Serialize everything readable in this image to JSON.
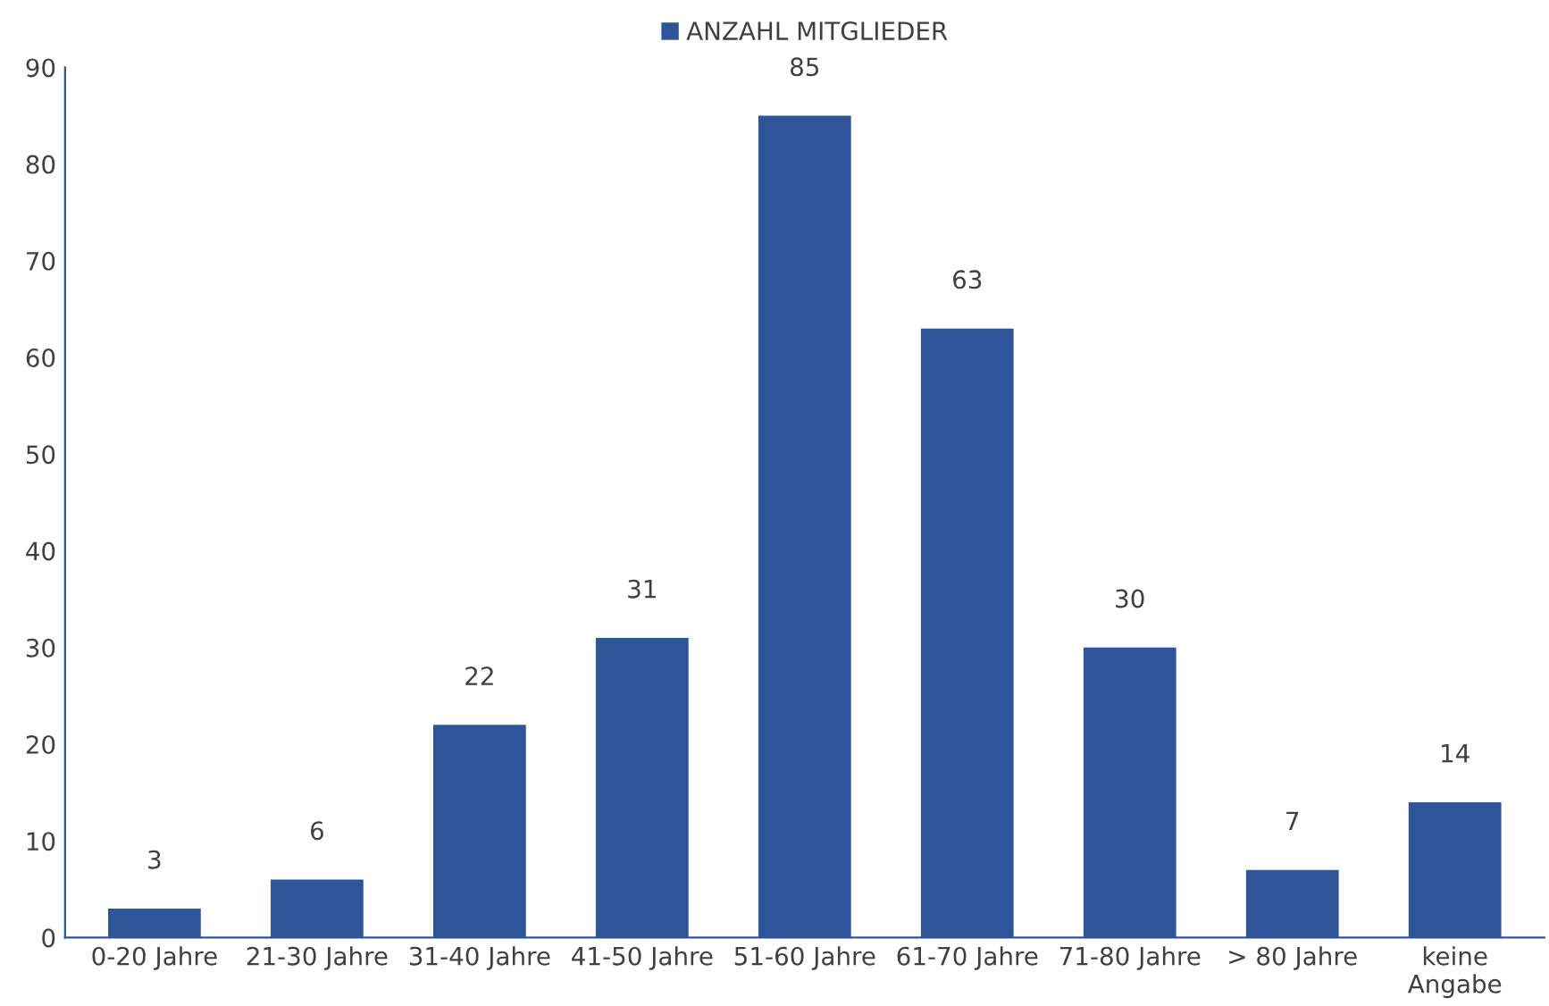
{
  "chart_data": {
    "type": "bar",
    "categories": [
      "0-20 Jahre",
      "21-30 Jahre",
      "31-40 Jahre",
      "41-50 Jahre",
      "51-60 Jahre",
      "61-70 Jahre",
      "71-80 Jahre",
      "> 80 Jahre",
      "keine\nAngabe"
    ],
    "series": [
      {
        "name": "ANZAHL MITGLIEDER",
        "color": "#2e5597",
        "values": [
          3,
          6,
          22,
          31,
          85,
          63,
          30,
          7,
          14
        ]
      }
    ],
    "ylim": [
      0,
      90
    ],
    "yticks": [
      0,
      10,
      20,
      30,
      40,
      50,
      60,
      70,
      80,
      90
    ],
    "data_labels": true,
    "grid": false,
    "legend": "top"
  }
}
